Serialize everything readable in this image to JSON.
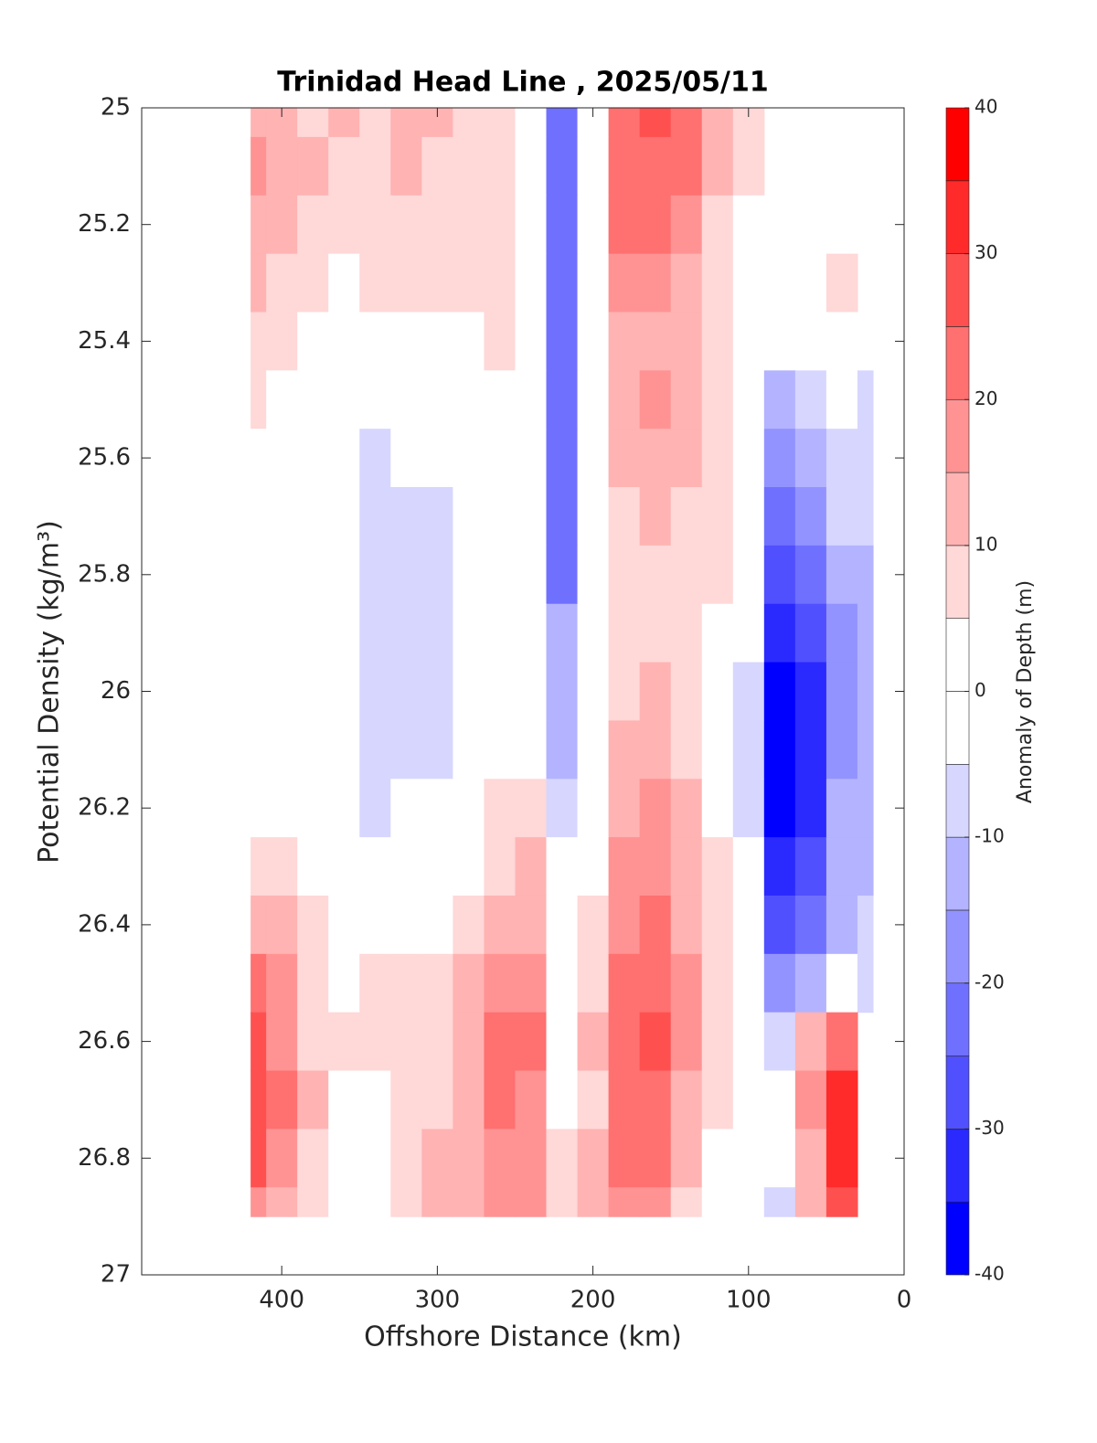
{
  "chart_data": {
    "type": "filled-contour",
    "title": "Trinidad Head Line , 2025/05/11",
    "xlabel": "Offshore Distance (km)",
    "ylabel": "Potential Density (kg/m³)",
    "xlim": [
      490,
      0
    ],
    "xticks": [
      400,
      300,
      200,
      100,
      0
    ],
    "ylim": [
      25,
      27
    ],
    "yticks": [
      25,
      25.2,
      25.4,
      25.6,
      25.8,
      26,
      26.2,
      26.4,
      26.6,
      26.8,
      27
    ],
    "x": [
      420,
      400,
      380,
      360,
      340,
      320,
      300,
      280,
      260,
      240,
      220,
      200,
      180,
      160,
      140,
      120,
      100,
      80,
      60,
      40,
      20
    ],
    "y": [
      25,
      25.1,
      25.2,
      25.3,
      25.4,
      25.5,
      25.6,
      25.7,
      25.8,
      25.9,
      26,
      26.1,
      26.2,
      26.3,
      26.4,
      26.5,
      26.6,
      26.7,
      26.8,
      26.9
    ],
    "z": [
      [
        15,
        12,
        10,
        12,
        10,
        15,
        12,
        8,
        8,
        3,
        -20,
        0,
        25,
        30,
        25,
        15,
        8,
        null,
        null,
        null,
        null
      ],
      [
        20,
        14,
        12,
        8,
        10,
        14,
        10,
        8,
        8,
        2,
        -22,
        0,
        25,
        25,
        22,
        12,
        6,
        null,
        null,
        null,
        null
      ],
      [
        15,
        15,
        8,
        6,
        10,
        8,
        8,
        6,
        8,
        2,
        -22,
        1,
        22,
        22,
        20,
        10,
        5,
        2,
        null,
        null,
        null
      ],
      [
        12,
        10,
        6,
        3,
        6,
        8,
        6,
        6,
        8,
        2,
        -24,
        1,
        18,
        18,
        15,
        10,
        3,
        0,
        2,
        8,
        null
      ],
      [
        8,
        8,
        4,
        1,
        3,
        4,
        2,
        0,
        6,
        1,
        -24,
        1,
        15,
        15,
        12,
        8,
        2,
        -3,
        -2,
        2,
        null
      ],
      [
        6,
        5,
        3,
        1,
        0,
        0,
        1,
        0,
        5,
        1,
        -22,
        1,
        15,
        18,
        12,
        6,
        1,
        -10,
        -5,
        0,
        -5
      ],
      [
        5,
        3,
        1,
        0,
        -6,
        -2,
        -2,
        0,
        4,
        0,
        -22,
        1,
        12,
        14,
        12,
        6,
        0,
        -15,
        -10,
        -5,
        -7
      ],
      [
        3,
        2,
        0,
        0,
        -7,
        -5,
        -6,
        -2,
        3,
        0,
        -20,
        0,
        10,
        12,
        10,
        6,
        -2,
        -20,
        -15,
        -8,
        -8
      ],
      [
        2,
        1,
        0,
        0,
        -7,
        -6,
        -7,
        -2,
        2,
        0,
        -20,
        0,
        10,
        10,
        10,
        6,
        -3,
        -25,
        -20,
        -10,
        -10
      ],
      [
        0,
        0,
        0,
        -1,
        -8,
        -6,
        -6,
        -2,
        3,
        1,
        -14,
        0,
        10,
        10,
        10,
        5,
        -4,
        -30,
        -25,
        -15,
        -12
      ],
      [
        0,
        0,
        0,
        -1,
        -8,
        -7,
        -6,
        -2,
        4,
        4,
        -12,
        0,
        10,
        12,
        10,
        5,
        -5,
        -35,
        -30,
        -15,
        -12
      ],
      [
        0,
        0,
        0,
        -1,
        -8,
        -7,
        -6,
        -1,
        5,
        5,
        -10,
        1,
        12,
        15,
        10,
        5,
        -6,
        -38,
        -32,
        -16,
        -12
      ],
      [
        1,
        0,
        0,
        0,
        -6,
        -2,
        -1,
        0,
        7,
        8,
        -6,
        2,
        15,
        18,
        12,
        5,
        -6,
        -35,
        -30,
        -14,
        -10
      ],
      [
        7,
        6,
        2,
        0,
        0,
        0,
        0,
        0,
        10,
        12,
        0,
        3,
        16,
        20,
        14,
        6,
        -4,
        -30,
        -25,
        -12,
        -10
      ],
      [
        15,
        12,
        8,
        1,
        2,
        4,
        3,
        6,
        14,
        14,
        3,
        6,
        18,
        22,
        14,
        6,
        -2,
        -25,
        -20,
        -10,
        -8
      ],
      [
        22,
        18,
        10,
        4,
        6,
        8,
        10,
        12,
        18,
        20,
        4,
        10,
        22,
        24,
        16,
        7,
        -1,
        -15,
        -10,
        5,
        -6
      ],
      [
        28,
        20,
        10,
        6,
        8,
        6,
        10,
        14,
        22,
        22,
        4,
        12,
        25,
        28,
        16,
        8,
        0,
        -5,
        15,
        25,
        null
      ],
      [
        28,
        22,
        12,
        3,
        4,
        6,
        10,
        15,
        22,
        20,
        5,
        8,
        24,
        25,
        15,
        6,
        0,
        -2,
        18,
        32,
        null
      ],
      [
        26,
        18,
        10,
        0,
        2,
        7,
        12,
        15,
        20,
        18,
        8,
        12,
        22,
        22,
        14,
        5,
        -2,
        -3,
        15,
        32,
        null
      ],
      [
        18,
        14,
        8,
        0,
        0,
        6,
        12,
        15,
        18,
        16,
        10,
        14,
        16,
        16,
        10,
        4,
        -3,
        -5,
        12,
        28,
        null
      ]
    ],
    "colorbar": {
      "label": "Anomaly of Depth (m)",
      "levels": [
        -40,
        -35,
        -30,
        -25,
        -20,
        -15,
        -10,
        -5,
        0,
        5,
        10,
        15,
        20,
        25,
        30,
        35,
        40
      ],
      "colors": [
        "#0000ff",
        "#2a2aff",
        "#5050ff",
        "#7070ff",
        "#9393ff",
        "#b3b3ff",
        "#d6d6ff",
        "#ffffff",
        "#ffffff",
        "#ffd8d8",
        "#ffb3b3",
        "#ff9393",
        "#ff7070",
        "#ff5050",
        "#ff2a2a",
        "#ff0000"
      ],
      "ticks": [
        -40,
        -30,
        -20,
        -10,
        0,
        10,
        20,
        30,
        40
      ]
    }
  }
}
